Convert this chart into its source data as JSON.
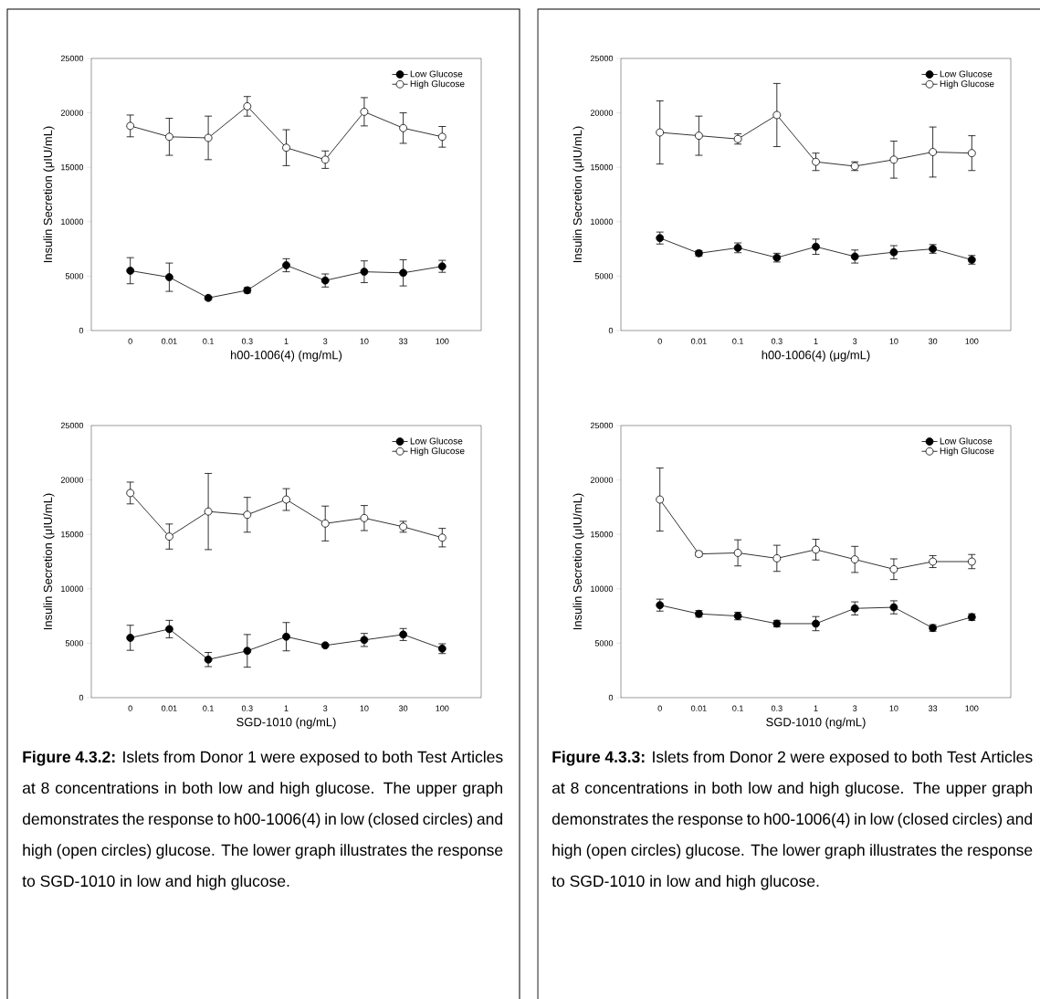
{
  "chart_data": [
    {
      "type": "line",
      "categories": [
        "0",
        "0.01",
        "0.1",
        "0.3",
        "1",
        "3",
        "10",
        "33",
        "100"
      ],
      "xlabel": "h00-1006(4) (mg/mL)",
      "ylabel": "Insulin Secretion (μIU/mL)",
      "ylim": [
        0,
        25000
      ],
      "yticks": [
        0,
        5000,
        10000,
        15000,
        20000,
        25000
      ],
      "legend": "top right",
      "marker": "circle",
      "series": [
        {
          "name": "Low Glucose",
          "color": "#000000",
          "values": [
            5500,
            4900,
            3000,
            3700,
            6000,
            4600,
            5400,
            5300,
            5900
          ],
          "errors": [
            1200,
            1300,
            150,
            250,
            600,
            600,
            1000,
            1200,
            550
          ]
        },
        {
          "name": "High Glucose",
          "color": "#ffffff",
          "values": [
            18800,
            17800,
            17700,
            20600,
            16800,
            15700,
            20100,
            18600,
            17800
          ],
          "errors": [
            1000,
            1700,
            2000,
            900,
            1650,
            800,
            1300,
            1400,
            950
          ]
        }
      ]
    },
    {
      "type": "line",
      "categories": [
        "0",
        "0.01",
        "0.1",
        "0.3",
        "1",
        "3",
        "10",
        "30",
        "100"
      ],
      "xlabel": "SGD-1010 (ng/mL)",
      "ylabel": "Insulin Secretion (μIU/mL)",
      "ylim": [
        0,
        25000
      ],
      "yticks": [
        0,
        5000,
        10000,
        15000,
        20000,
        25000
      ],
      "legend": "top right",
      "marker": "circle",
      "series": [
        {
          "name": "Low Glucose",
          "color": "#000000",
          "values": [
            5500,
            6300,
            3500,
            4300,
            5600,
            4800,
            5300,
            5800,
            4500
          ],
          "errors": [
            1150,
            800,
            650,
            1500,
            1300,
            null,
            600,
            550,
            450
          ]
        },
        {
          "name": "High Glucose",
          "color": "#ffffff",
          "values": [
            18800,
            14800,
            17100,
            16800,
            18200,
            16000,
            16500,
            15700,
            14700
          ],
          "errors": [
            1000,
            1150,
            3500,
            1600,
            1000,
            1600,
            1150,
            500,
            850
          ]
        }
      ],
      "annotations": [
        "**Figure 4.3.2:** Islets from Donor 1 were exposed to both Test Articles at 8 concentrations in both low and high glucose. The upper graph demonstrates the response to h00-1006(4) in low (closed circles) and high (open circles) glucose. The lower graph illustrates the response to SGD-1010 in low and high glucose."
      ]
    },
    {
      "type": "line",
      "categories": [
        "0",
        "0.01",
        "0.1",
        "0.3",
        "1",
        "3",
        "10",
        "30",
        "100"
      ],
      "xlabel": "h00-1006(4) (μg/mL)",
      "ylabel": "Insulin Secretion (μIU/mL)",
      "ylim": [
        0,
        25000
      ],
      "yticks": [
        0,
        5000,
        10000,
        15000,
        20000,
        25000
      ],
      "legend": "top right",
      "marker": "circle",
      "series": [
        {
          "name": "Low Glucose",
          "color": "#000000",
          "values": [
            8500,
            7100,
            7600,
            6700,
            7700,
            6800,
            7200,
            7500,
            6500
          ],
          "errors": [
            550,
            250,
            450,
            400,
            700,
            600,
            600,
            400,
            400
          ]
        },
        {
          "name": "High Glucose",
          "color": "#ffffff",
          "values": [
            18200,
            17900,
            17600,
            19800,
            15500,
            15100,
            15700,
            16400,
            16300
          ],
          "errors": [
            2900,
            1800,
            470,
            2900,
            800,
            400,
            1700,
            2300,
            1600
          ]
        }
      ]
    },
    {
      "type": "line",
      "categories": [
        "0",
        "0.01",
        "0.1",
        "0.3",
        "1",
        "3",
        "10",
        "33",
        "100"
      ],
      "xlabel": "SGD-1010 (ng/mL)",
      "ylabel": "Insulin Secretion (μIU/mL)",
      "ylim": [
        0,
        25000
      ],
      "yticks": [
        0,
        5000,
        10000,
        15000,
        20000,
        25000
      ],
      "legend": "top right",
      "marker": "circle",
      "series": [
        {
          "name": "Low Glucose",
          "color": "#000000",
          "values": [
            8500,
            7700,
            7500,
            6800,
            6800,
            8200,
            8300,
            6400,
            7400
          ],
          "errors": [
            550,
            300,
            350,
            300,
            650,
            600,
            600,
            300,
            300
          ]
        },
        {
          "name": "High Glucose",
          "color": "#ffffff",
          "values": [
            18200,
            13200,
            13300,
            12800,
            13600,
            12700,
            11800,
            12500,
            12500
          ],
          "errors": [
            2900,
            200,
            1200,
            1200,
            950,
            1200,
            950,
            550,
            650
          ]
        }
      ],
      "annotations": [
        "**Figure 4.3.3:** Islets from Donor 2 were exposed to both Test Articles at 8 concentrations in both low and high glucose. The upper graph demonstrates the response to h00-1006(4) in low (closed circles) and high (open circles) glucose. The lower graph illustrates the response to SGD-1010 in low and high glucose."
      ]
    }
  ]
}
